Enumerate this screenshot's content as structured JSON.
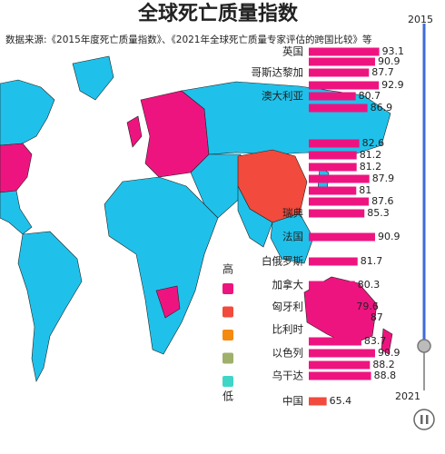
{
  "title": "全球死亡质量指数",
  "subtitle": "数据来源:《2015年度死亡质量指数》、《2021年全球死亡质量专家评估的跨国比较》等",
  "chart_data": {
    "type": "bar",
    "orientation": "horizontal",
    "categories": [
      "英国",
      null,
      "哥斯达黎加",
      null,
      "澳大利亚",
      null,
      null,
      null,
      null,
      null,
      null,
      null,
      "瑞典",
      "法国",
      "白俄罗斯",
      "加拿大",
      "匈牙利",
      null,
      "比利时",
      null,
      "以色列",
      null,
      "乌干达",
      "中国"
    ],
    "values": [
      93.1,
      90.9,
      87.7,
      92.9,
      80.7,
      86.9,
      82.6,
      81.2,
      81.2,
      87.9,
      81,
      87.6,
      85.3,
      90.9,
      81.7,
      80.3,
      79.6,
      87,
      null,
      83.7,
      90.9,
      88.2,
      88.8,
      65.4
    ],
    "colors": [
      "#ee1480",
      "#ee1480",
      "#ee1480",
      "#ee1480",
      "#ee1480",
      "#ee1480",
      "#ee1480",
      "#ee1480",
      "#ee1480",
      "#ee1480",
      "#ee1480",
      "#ee1480",
      "#ee1480",
      "#ee1480",
      "#ee1480",
      "#ee1480",
      "#ee1480",
      "#ee1480",
      "#ee1480",
      "#ee1480",
      "#ee1480",
      "#ee1480",
      "#ee1480",
      "#f24a3c"
    ],
    "xlim": [
      56,
      100
    ]
  },
  "legend": {
    "high": "高",
    "low": "低",
    "colors": [
      "#ee1480",
      "#f24a3c",
      "#f58a10",
      "#9fb06a",
      "#3fd6c8"
    ]
  },
  "timeline": {
    "start": "2015",
    "end": "2021"
  }
}
